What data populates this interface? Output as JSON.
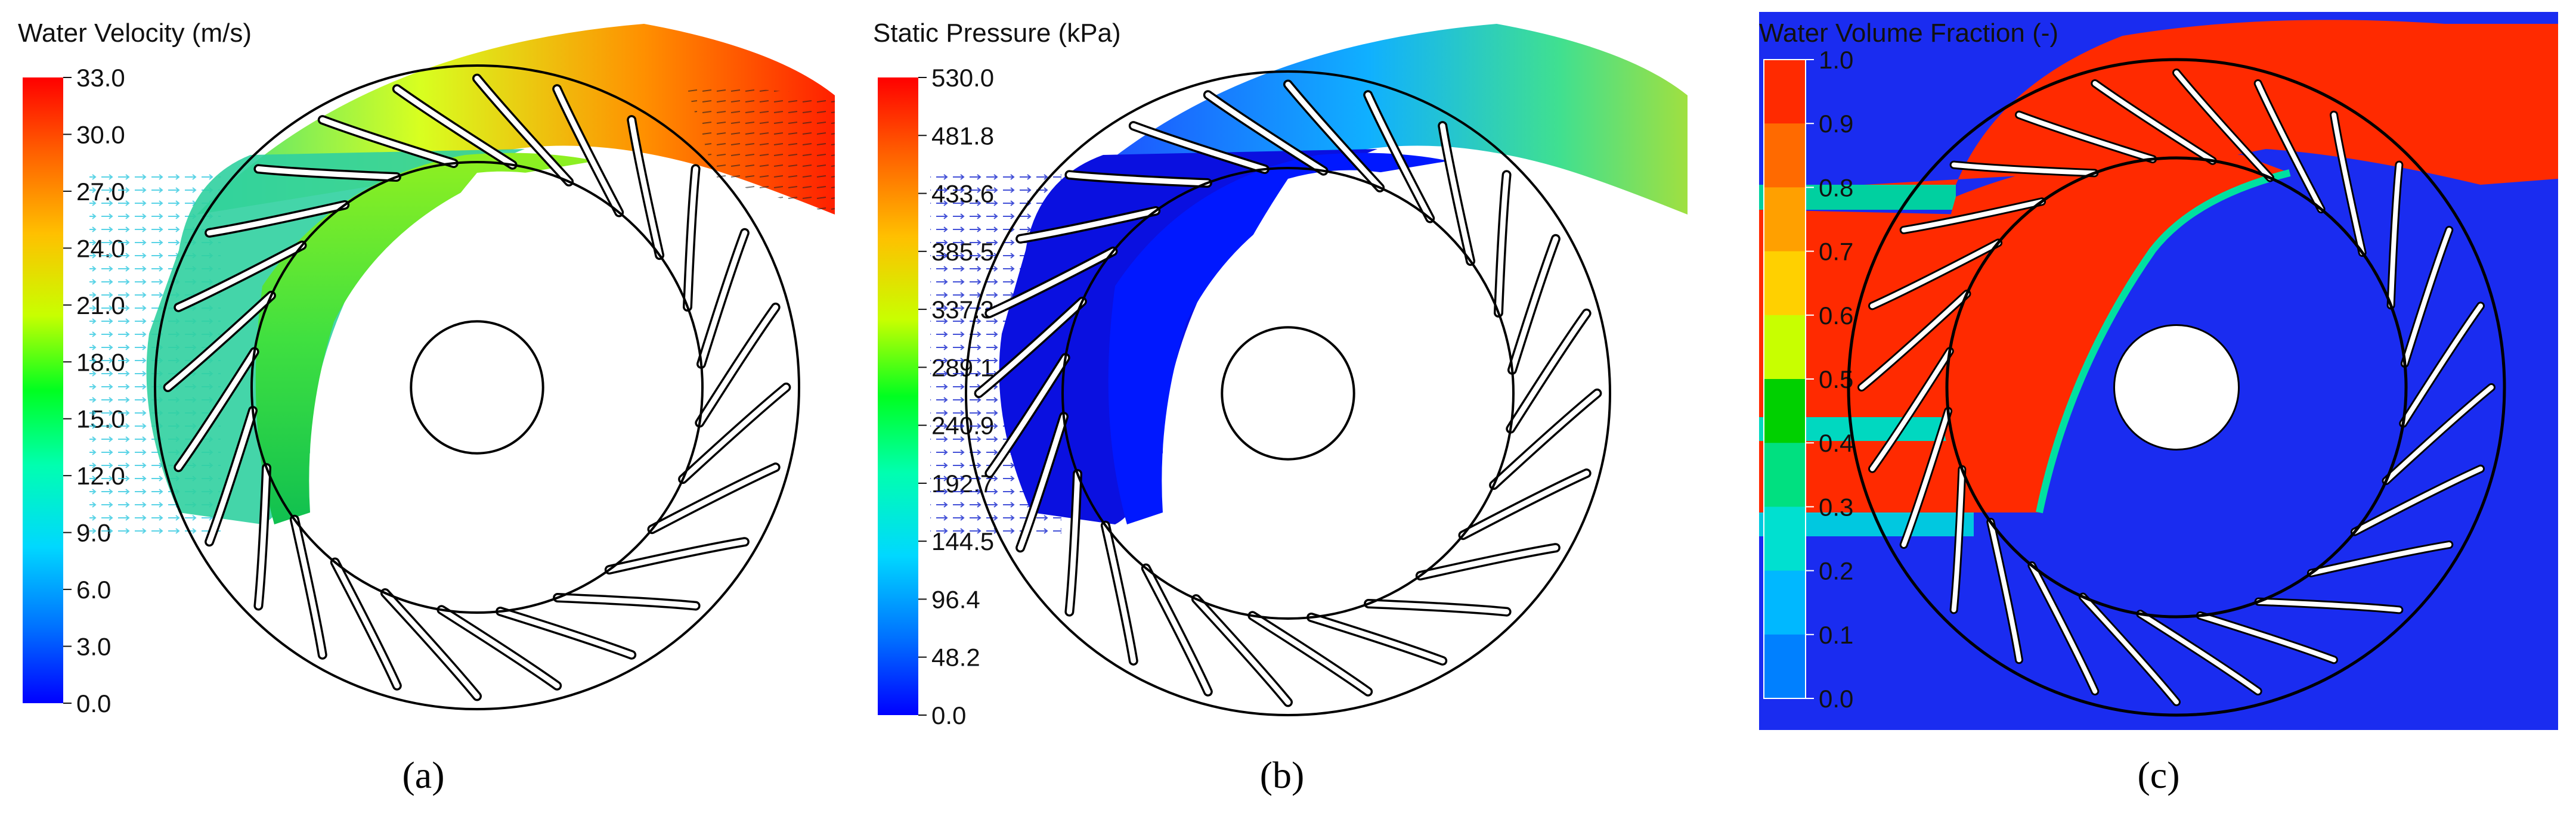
{
  "panels": [
    {
      "id": "a",
      "caption": "(a)",
      "legend_title": "Water Velocity (m/s)",
      "ticks": [
        "33.0",
        "30.0",
        "27.0",
        "24.0",
        "21.0",
        "18.0",
        "15.0",
        "12.0",
        "9.0",
        "6.0",
        "3.0",
        "0.0"
      ],
      "colormap": "continuous rainbow",
      "background": "#ffffff"
    },
    {
      "id": "b",
      "caption": "(b)",
      "legend_title": "Static Pressure (kPa)",
      "ticks": [
        "530.0",
        "481.8",
        "433.6",
        "385.5",
        "337.3",
        "289.1",
        "240.9",
        "192.7",
        "144.5",
        "96.4",
        "48.2",
        "0.0"
      ],
      "colormap": "continuous rainbow",
      "background": "#ffffff"
    },
    {
      "id": "c",
      "caption": "(c)",
      "legend_title": "Water Volume Fraction (-)",
      "ticks": [
        "1.0",
        "0.9",
        "0.8",
        "0.7",
        "0.6",
        "0.5",
        "0.4",
        "0.3",
        "0.2",
        "0.1",
        "0.0"
      ],
      "colormap": "banded",
      "background": "#1a2cf0"
    }
  ],
  "colors": {
    "rainbow": [
      "#ff0000",
      "#ff8c00",
      "#ffe000",
      "#7dff00",
      "#00e040",
      "#00ffd0",
      "#00b0ff",
      "#0040ff",
      "#0000d0"
    ],
    "band_c": [
      "#ff2a00",
      "#ff6a00",
      "#ffa000",
      "#ffd000",
      "#c8ff00",
      "#00d000",
      "#00e080",
      "#00e0d0",
      "#00b8ff",
      "#0080ff",
      "#1a2cf0"
    ],
    "water": "#ff2a00",
    "air": "#1a2cf0"
  }
}
